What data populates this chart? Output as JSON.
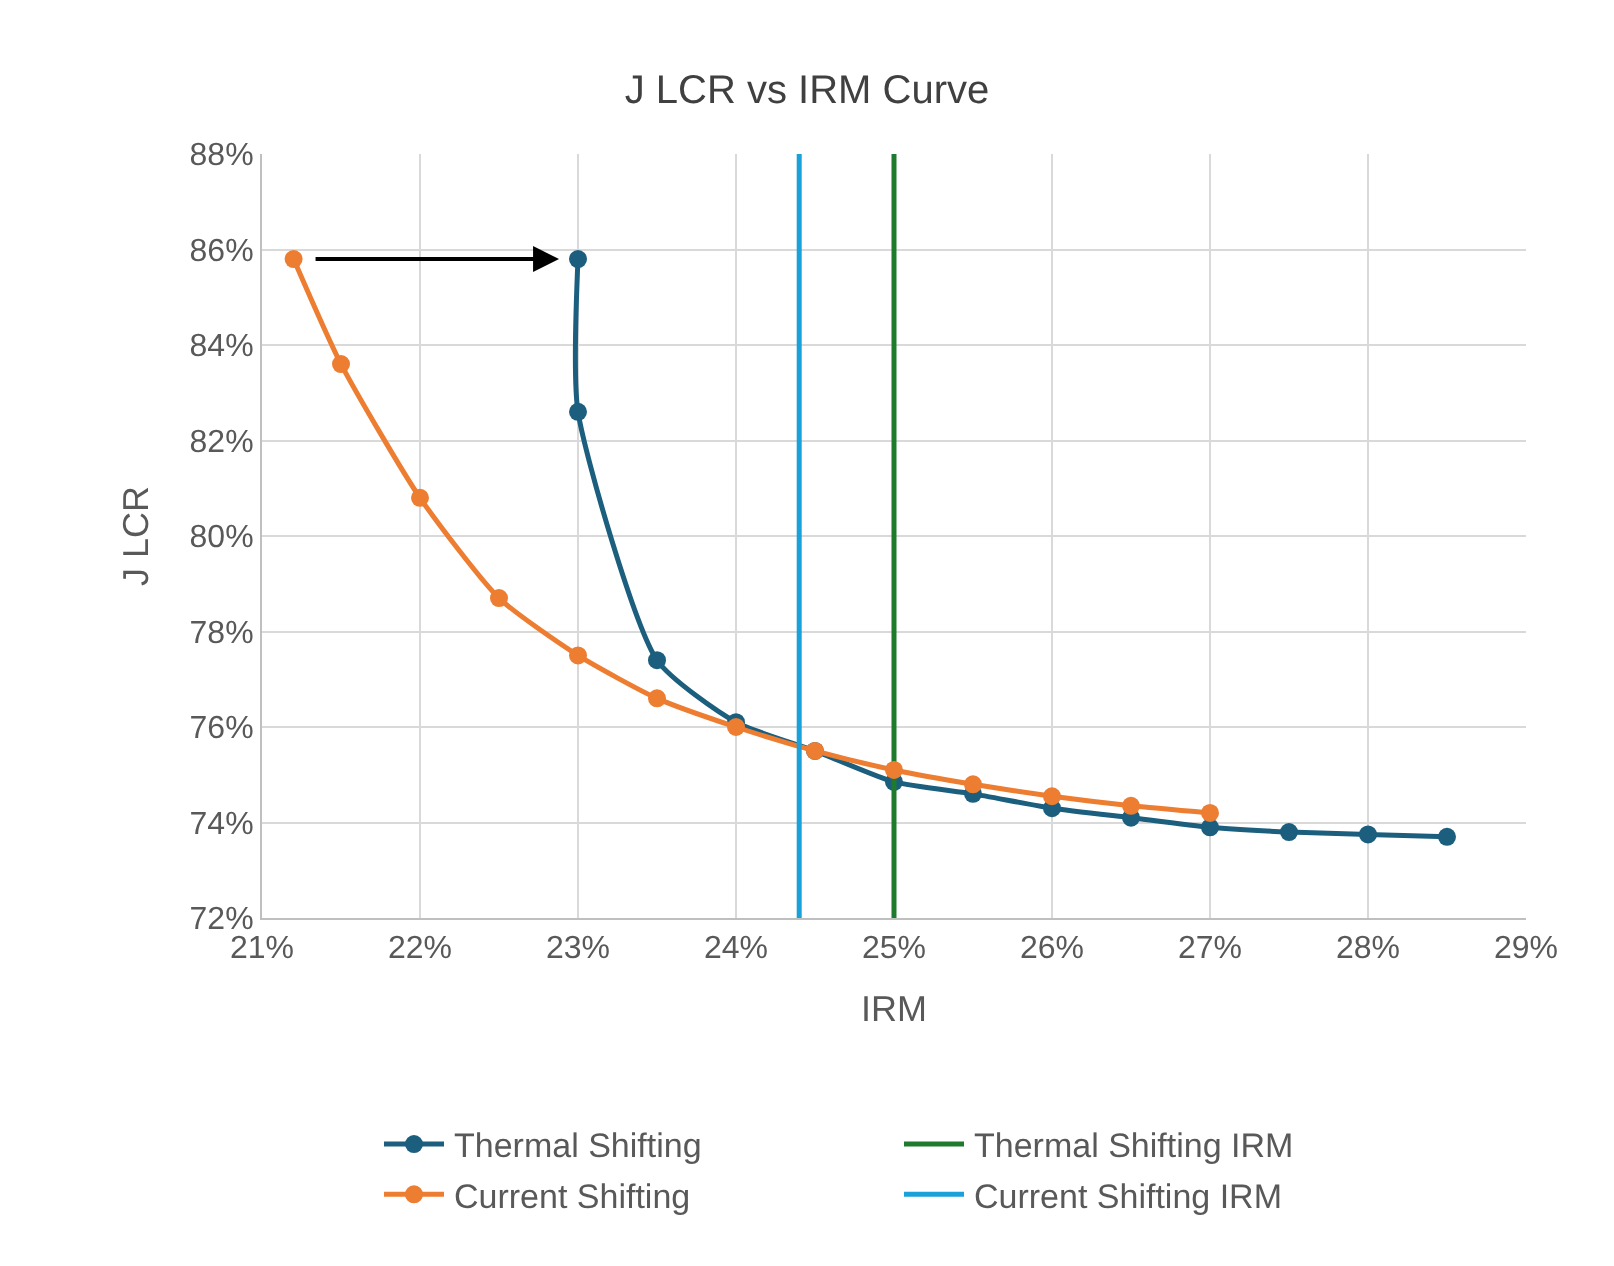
{
  "chart_data": {
    "type": "line",
    "title": "J LCR vs IRM Curve",
    "xlabel": "IRM",
    "ylabel": "J LCR",
    "series": [
      {
        "name": "Thermal Shifting",
        "color": "#1b5e7e",
        "x": [
          23,
          23,
          23.5,
          24,
          24.5,
          25,
          25.5,
          26,
          26.5,
          27,
          27.5,
          28,
          28.5
        ],
        "values": [
          85.8,
          82.6,
          77.4,
          76.1,
          75.5,
          74.85,
          74.6,
          74.3,
          74.1,
          73.9,
          73.8,
          73.75,
          73.7
        ],
        "marker": "circle"
      },
      {
        "name": "Thermal Shifting IRM",
        "color": "#1e7b2e",
        "x": [
          25.0,
          25.0
        ],
        "values": [
          72,
          88
        ],
        "marker": "none"
      },
      {
        "name": "Current Shifting",
        "color": "#ed7d31",
        "x": [
          21.2,
          21.5,
          22,
          22.5,
          23,
          23.5,
          24,
          24.5,
          25,
          25.5,
          26,
          26.5,
          27
        ],
        "values": [
          85.8,
          83.6,
          80.8,
          78.7,
          77.5,
          76.6,
          76.0,
          75.5,
          75.1,
          74.8,
          74.55,
          74.35,
          74.2
        ],
        "marker": "circle"
      },
      {
        "name": "Current Shifting IRM",
        "color": "#1ba1d9",
        "x": [
          24.4,
          24.4
        ],
        "values": [
          72,
          88
        ],
        "marker": "none"
      }
    ],
    "xlim": [
      21,
      29
    ],
    "xticks": [
      {
        "value": 21,
        "label": "21%"
      },
      {
        "value": 22,
        "label": "22%"
      },
      {
        "value": 23,
        "label": "23%"
      },
      {
        "value": 24,
        "label": "24%"
      },
      {
        "value": 25,
        "label": "25%"
      },
      {
        "value": 26,
        "label": "26%"
      },
      {
        "value": 27,
        "label": "27%"
      },
      {
        "value": 28,
        "label": "28%"
      },
      {
        "value": 29,
        "label": "29%"
      }
    ],
    "ylim": [
      72,
      88
    ],
    "yticks": [
      {
        "value": 72,
        "label": "72%"
      },
      {
        "value": 74,
        "label": "74%"
      },
      {
        "value": 76,
        "label": "76%"
      },
      {
        "value": 78,
        "label": "78%"
      },
      {
        "value": 80,
        "label": "80%"
      },
      {
        "value": 82,
        "label": "82%"
      },
      {
        "value": 84,
        "label": "84%"
      },
      {
        "value": 86,
        "label": "86%"
      },
      {
        "value": 88,
        "label": "88%"
      }
    ],
    "grid": true,
    "legend": "bottom"
  }
}
